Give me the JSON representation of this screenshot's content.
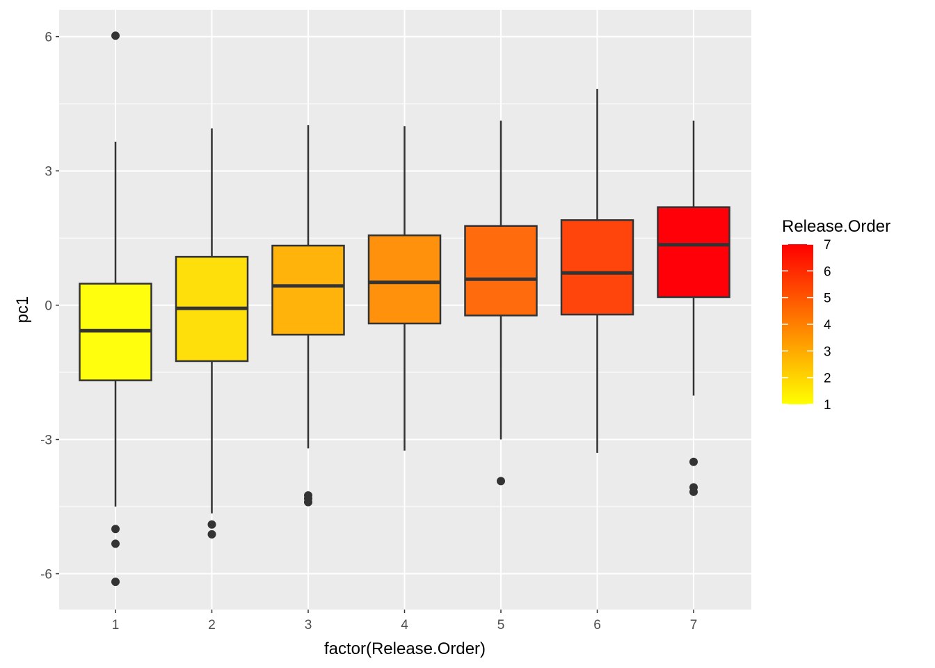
{
  "chart_data": {
    "type": "boxplot",
    "xlabel": "factor(Release.Order)",
    "ylabel": "pc1",
    "ylim": [
      -6.8,
      6.6
    ],
    "yticks": [
      -6,
      -3,
      0,
      3,
      6
    ],
    "ytick_labels": [
      "-6",
      "-3",
      "0",
      "3",
      "6"
    ],
    "grid": true,
    "categories": [
      "1",
      "2",
      "3",
      "4",
      "5",
      "6",
      "7"
    ],
    "boxes": [
      {
        "category": "1",
        "whisker_low": -4.5,
        "q1": -1.68,
        "median": -0.57,
        "q3": 0.48,
        "whisker_high": 3.65,
        "outliers": [
          6.02,
          -5.0,
          -5.33,
          -6.18
        ],
        "fill": "#FFFF0D"
      },
      {
        "category": "2",
        "whisker_low": -4.65,
        "q1": -1.25,
        "median": -0.07,
        "q3": 1.08,
        "whisker_high": 3.95,
        "outliers": [
          -4.9,
          -5.12
        ],
        "fill": "#FFDF0B"
      },
      {
        "category": "3",
        "whisker_low": -3.2,
        "q1": -0.66,
        "median": 0.43,
        "q3": 1.33,
        "whisker_high": 4.02,
        "outliers": [
          -4.25,
          -4.32,
          -4.4
        ],
        "fill": "#FFB30B"
      },
      {
        "category": "4",
        "whisker_low": -3.25,
        "q1": -0.41,
        "median": 0.51,
        "q3": 1.56,
        "whisker_high": 4.0,
        "outliers": [],
        "fill": "#FF910C"
      },
      {
        "category": "5",
        "whisker_low": -3.0,
        "q1": -0.23,
        "median": 0.58,
        "q3": 1.77,
        "whisker_high": 4.12,
        "outliers": [
          -3.93
        ],
        "fill": "#FF6B0D"
      },
      {
        "category": "6",
        "whisker_low": -3.3,
        "q1": -0.21,
        "median": 0.72,
        "q3": 1.9,
        "whisker_high": 4.83,
        "outliers": [],
        "fill": "#FF450C"
      },
      {
        "category": "7",
        "whisker_low": -2.02,
        "q1": 0.18,
        "median": 1.35,
        "q3": 2.19,
        "whisker_high": 4.12,
        "outliers": [
          -3.5,
          -4.07,
          -4.17
        ],
        "fill": "#FF0009"
      }
    ],
    "legend": {
      "title": "Release.Order",
      "placement": "right",
      "type": "colorbar",
      "labels": [
        "1",
        "2",
        "3",
        "4",
        "5",
        "6",
        "7"
      ],
      "color_low": "#FFFF00",
      "color_high": "#FF0000"
    }
  }
}
